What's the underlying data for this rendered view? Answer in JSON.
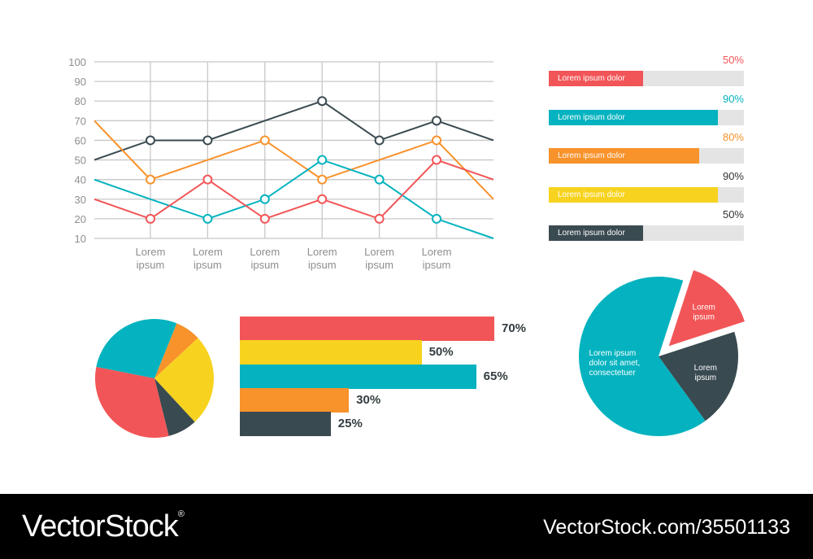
{
  "colors": {
    "red": "#f25557",
    "teal": "#04b3bf",
    "orange": "#f8922b",
    "yellow": "#f7d320",
    "dark": "#3a4a51",
    "grid": "#c8c8c8",
    "axis_text": "#8e8e8e",
    "track": "#e4e4e4"
  },
  "chart_data": [
    {
      "type": "line",
      "ylim": [
        10,
        100
      ],
      "y_ticks": [
        "100",
        "90",
        "80",
        "70",
        "60",
        "50",
        "40",
        "30",
        "20",
        "10"
      ],
      "categories": [
        "Lorem ipsum",
        "Lorem ipsum",
        "Lorem ipsum",
        "Lorem ipsum",
        "Lorem ipsum",
        "Lorem ipsum"
      ],
      "grid": true,
      "series": [
        {
          "color": "#3a4a51",
          "start": 50,
          "values": [
            60,
            60,
            70,
            80,
            60,
            70
          ],
          "end": 60
        },
        {
          "color": "#f8922b",
          "start": 70,
          "values": [
            40,
            50,
            60,
            40,
            50,
            60
          ],
          "end": 30
        },
        {
          "color": "#04b3bf",
          "start": 40,
          "values": [
            30,
            20,
            30,
            50,
            40,
            20
          ],
          "end": 10
        },
        {
          "color": "#f25557",
          "start": 30,
          "values": [
            20,
            40,
            20,
            30,
            20,
            50
          ],
          "end": 40
        }
      ],
      "markers": [
        {
          "color": "#3a4a51",
          "values": [
            60,
            60,
            null,
            80,
            60,
            70
          ]
        },
        {
          "color": "#f8922b",
          "values": [
            40,
            null,
            60,
            40,
            null,
            60
          ]
        },
        {
          "color": "#04b3bf",
          "values": [
            null,
            20,
            30,
            50,
            40,
            20
          ]
        },
        {
          "color": "#f25557",
          "values": [
            20,
            40,
            20,
            30,
            20,
            50
          ]
        }
      ]
    },
    {
      "type": "bar",
      "orientation": "horizontal",
      "items": [
        {
          "label": "Lorem ipsum dolor",
          "value": 50,
          "pct": "50%",
          "color": "#f25557",
          "pct_color": "#f25557"
        },
        {
          "label": "Lorem ipsum dolor",
          "value": 90,
          "pct": "90%",
          "color": "#04b3bf",
          "pct_color": "#04b3bf"
        },
        {
          "label": "Lorem ipsum dolor",
          "value": 80,
          "pct": "80%",
          "color": "#f8922b",
          "pct_color": "#f8922b"
        },
        {
          "label": "Lorem ipsum dolor",
          "value": 90,
          "pct": "90%",
          "color": "#f7d320",
          "pct_color": "#333333"
        },
        {
          "label": "Lorem ipsum dolor",
          "value": 50,
          "pct": "50%",
          "color": "#3a4a51",
          "pct_color": "#333333"
        }
      ]
    },
    {
      "type": "pie",
      "slices": [
        {
          "value": 7,
          "color": "#f8922b"
        },
        {
          "value": 25,
          "color": "#f7d320"
        },
        {
          "value": 8,
          "color": "#3a4a51"
        },
        {
          "value": 32,
          "color": "#f25557"
        },
        {
          "value": 28,
          "color": "#04b3bf"
        }
      ]
    },
    {
      "type": "bar",
      "orientation": "horizontal",
      "xlim": [
        0,
        70
      ],
      "items": [
        {
          "value": 70,
          "label": "70%",
          "color": "#f25557"
        },
        {
          "value": 50,
          "label": "50%",
          "color": "#f7d320"
        },
        {
          "value": 65,
          "label": "65%",
          "color": "#04b3bf"
        },
        {
          "value": 30,
          "label": "30%",
          "color": "#f8922b"
        },
        {
          "value": 25,
          "label": "25%",
          "color": "#3a4a51"
        }
      ]
    },
    {
      "type": "pie",
      "slices": [
        {
          "value": 15,
          "color": "#f25557",
          "exploded": true,
          "label": [
            "Lorem",
            "ipsum"
          ]
        },
        {
          "value": 20,
          "color": "#3a4a51",
          "label": [
            "Lorem",
            "ipsum"
          ]
        },
        {
          "value": 65,
          "color": "#04b3bf",
          "label": [
            "Lorem   ipsum",
            "dolor sit amet,",
            "consectetuer"
          ]
        }
      ]
    }
  ],
  "watermark": {
    "brand": "VectorStock",
    "brand_mark": "®",
    "id_text": "VectorStock.com/35501133"
  }
}
